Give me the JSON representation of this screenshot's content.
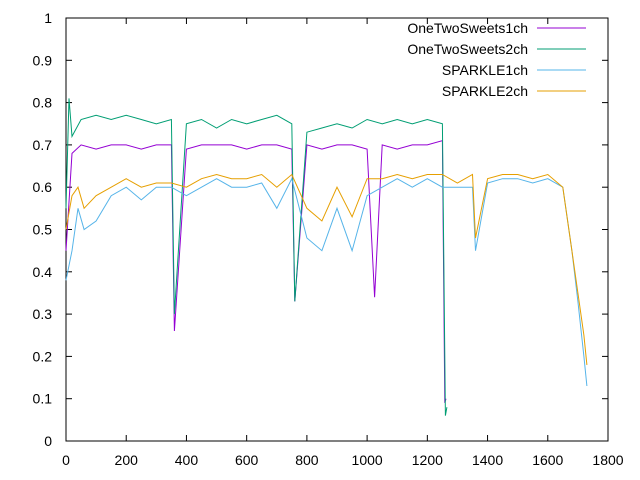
{
  "chart_data": {
    "type": "line",
    "title": "",
    "xlabel": "",
    "ylabel": "",
    "xlim": [
      0,
      1800
    ],
    "ylim": [
      0,
      1
    ],
    "x_ticks": [
      "0",
      "200",
      "400",
      "600",
      "800",
      "1000",
      "1200",
      "1400",
      "1600",
      "1800"
    ],
    "y_ticks": [
      "0",
      "0.1",
      "0.2",
      "0.3",
      "0.4",
      "0.5",
      "0.6",
      "0.7",
      "0.8",
      "0.9",
      "1"
    ],
    "grid": false,
    "legend_position": "top-right",
    "series": [
      {
        "name": "OneTwoSweets1ch",
        "color": "#9400d3",
        "x": [
          0,
          20,
          50,
          100,
          150,
          200,
          250,
          300,
          350,
          360,
          400,
          450,
          500,
          550,
          600,
          650,
          700,
          750,
          760,
          800,
          850,
          900,
          950,
          1000,
          1025,
          1050,
          1100,
          1150,
          1200,
          1250,
          1258,
          1262
        ],
        "y": [
          0.45,
          0.68,
          0.7,
          0.69,
          0.7,
          0.7,
          0.69,
          0.7,
          0.7,
          0.26,
          0.69,
          0.7,
          0.7,
          0.7,
          0.69,
          0.7,
          0.7,
          0.69,
          0.33,
          0.7,
          0.69,
          0.7,
          0.7,
          0.69,
          0.34,
          0.7,
          0.69,
          0.7,
          0.7,
          0.71,
          0.09,
          0.1
        ]
      },
      {
        "name": "OneTwoSweets2ch",
        "color": "#009e73",
        "x": [
          0,
          10,
          20,
          50,
          100,
          150,
          200,
          250,
          300,
          350,
          360,
          400,
          450,
          500,
          550,
          600,
          650,
          700,
          750,
          760,
          800,
          850,
          900,
          950,
          1000,
          1050,
          1100,
          1150,
          1200,
          1250,
          1260,
          1265
        ],
        "y": [
          0.55,
          0.81,
          0.72,
          0.76,
          0.77,
          0.76,
          0.77,
          0.76,
          0.75,
          0.76,
          0.3,
          0.75,
          0.76,
          0.74,
          0.76,
          0.75,
          0.76,
          0.77,
          0.75,
          0.33,
          0.73,
          0.74,
          0.75,
          0.74,
          0.76,
          0.75,
          0.76,
          0.75,
          0.76,
          0.75,
          0.06,
          0.08
        ]
      },
      {
        "name": "SPARKLE1ch",
        "color": "#56b4e9",
        "x": [
          0,
          20,
          40,
          60,
          100,
          150,
          200,
          250,
          300,
          350,
          400,
          450,
          500,
          550,
          600,
          650,
          700,
          750,
          800,
          850,
          900,
          950,
          1000,
          1050,
          1100,
          1150,
          1200,
          1250,
          1300,
          1350,
          1360,
          1400,
          1450,
          1500,
          1550,
          1600,
          1650,
          1680,
          1700,
          1720,
          1730
        ],
        "y": [
          0.38,
          0.45,
          0.55,
          0.5,
          0.52,
          0.58,
          0.6,
          0.57,
          0.6,
          0.6,
          0.58,
          0.6,
          0.62,
          0.6,
          0.6,
          0.61,
          0.55,
          0.62,
          0.48,
          0.45,
          0.55,
          0.45,
          0.58,
          0.6,
          0.62,
          0.6,
          0.62,
          0.6,
          0.6,
          0.6,
          0.45,
          0.61,
          0.62,
          0.62,
          0.61,
          0.62,
          0.6,
          0.45,
          0.33,
          0.2,
          0.13
        ]
      },
      {
        "name": "SPARKLE2ch",
        "color": "#e69f00",
        "x": [
          0,
          20,
          40,
          60,
          100,
          150,
          200,
          250,
          300,
          350,
          400,
          450,
          500,
          550,
          600,
          650,
          700,
          750,
          800,
          850,
          900,
          950,
          1000,
          1050,
          1100,
          1150,
          1200,
          1250,
          1300,
          1350,
          1360,
          1400,
          1450,
          1500,
          1550,
          1600,
          1650,
          1680,
          1700,
          1720,
          1730
        ],
        "y": [
          0.5,
          0.58,
          0.6,
          0.55,
          0.58,
          0.6,
          0.62,
          0.6,
          0.61,
          0.61,
          0.6,
          0.62,
          0.63,
          0.62,
          0.62,
          0.63,
          0.6,
          0.63,
          0.55,
          0.52,
          0.6,
          0.53,
          0.62,
          0.62,
          0.63,
          0.62,
          0.63,
          0.63,
          0.61,
          0.63,
          0.48,
          0.62,
          0.63,
          0.63,
          0.62,
          0.63,
          0.6,
          0.45,
          0.35,
          0.25,
          0.18
        ]
      }
    ]
  }
}
